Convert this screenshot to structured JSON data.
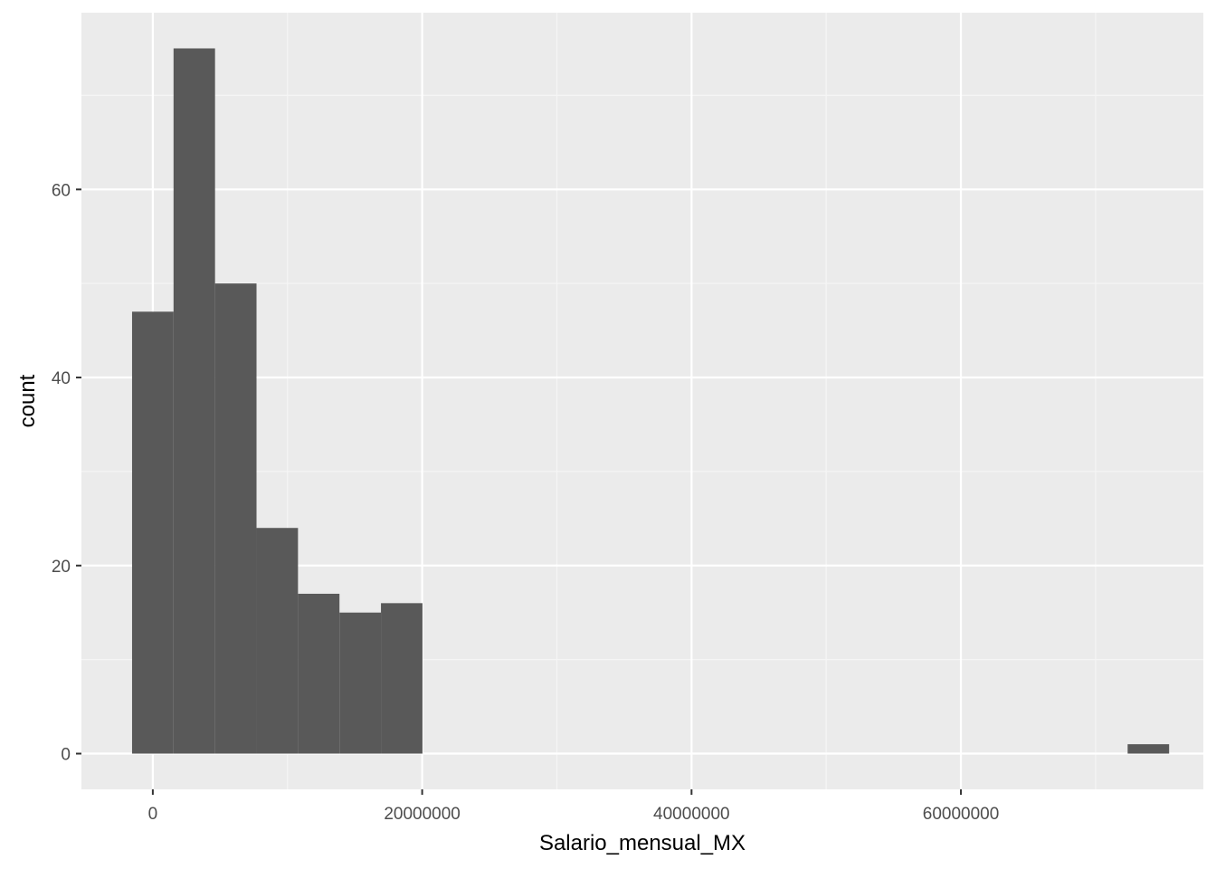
{
  "chart_data": {
    "type": "bar",
    "subtype": "histogram",
    "xlabel": "Salario_mensual_MX",
    "ylabel": "count",
    "xlim": [
      -5300000,
      78000000
    ],
    "ylim": [
      -3.8,
      78.8
    ],
    "x_ticks": [
      0,
      20000000,
      40000000,
      60000000
    ],
    "x_tick_labels": [
      "0",
      "20000000",
      "40000000",
      "60000000"
    ],
    "y_ticks": [
      0,
      20,
      40,
      60
    ],
    "y_tick_labels": [
      "0",
      "20",
      "40",
      "60"
    ],
    "bin_width": 3080000,
    "bins": [
      {
        "x_start": -1540000,
        "x_end": 1540000,
        "count": 47
      },
      {
        "x_start": 1540000,
        "x_end": 4620000,
        "count": 75
      },
      {
        "x_start": 4620000,
        "x_end": 7700000,
        "count": 50
      },
      {
        "x_start": 7700000,
        "x_end": 10780000,
        "count": 24
      },
      {
        "x_start": 10780000,
        "x_end": 13860000,
        "count": 17
      },
      {
        "x_start": 13860000,
        "x_end": 16940000,
        "count": 15
      },
      {
        "x_start": 16940000,
        "x_end": 20020000,
        "count": 16
      },
      {
        "x_start": 72380000,
        "x_end": 75460000,
        "count": 1
      }
    ],
    "grid": true,
    "legend": "none",
    "colors": {
      "panel_background": "#ebebeb",
      "grid_major": "#ffffff",
      "grid_minor": "#f5f5f5",
      "bar_fill": "#595959",
      "tick_text": "#4d4d4d",
      "tick_mark": "#333333",
      "title_text": "#000000"
    }
  }
}
